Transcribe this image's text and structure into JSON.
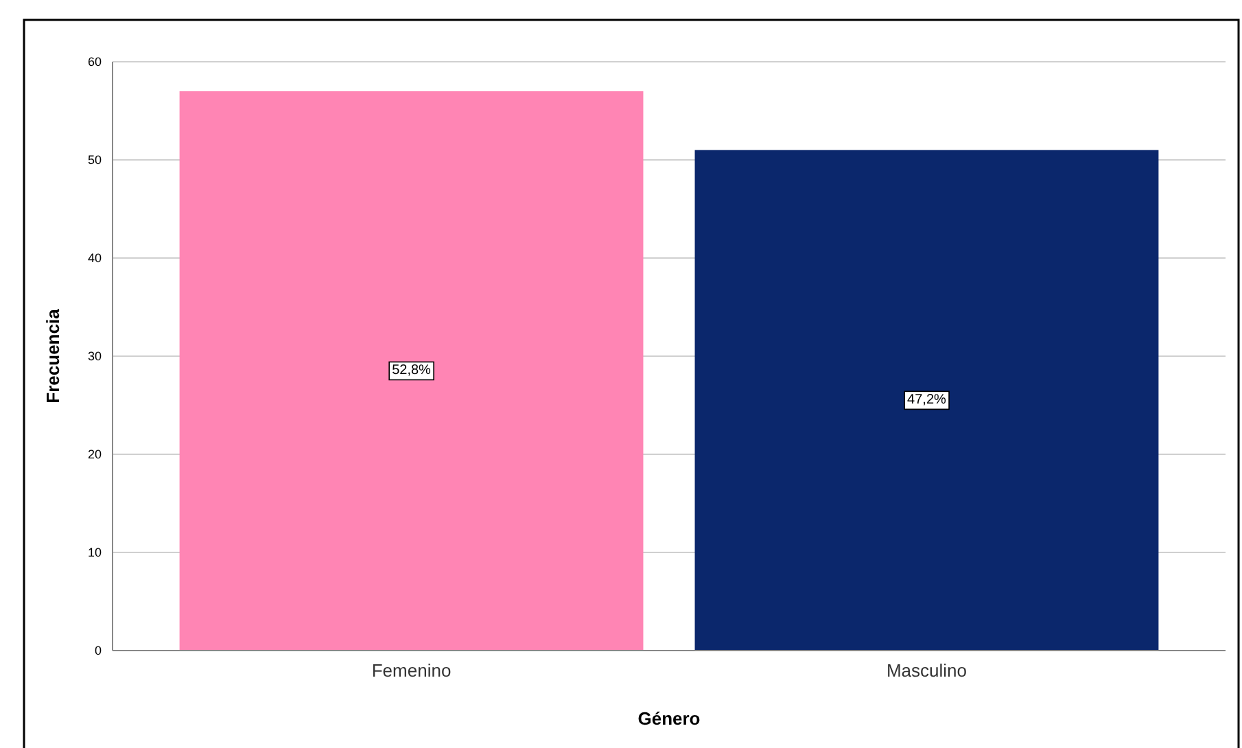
{
  "chart_data": {
    "type": "bar",
    "xlabel": "Género",
    "ylabel": "Frecuencia",
    "categories": [
      "Femenino",
      "Masculino"
    ],
    "values": [
      57,
      51
    ],
    "colors": [
      "#ff85b4",
      "#0b276c"
    ],
    "annotations": [
      {
        "text": "52,8%",
        "x": "Femenino",
        "y": 28.5
      },
      {
        "text": "47,2%",
        "x": "Masculino",
        "y": 25.5
      }
    ],
    "ylim": [
      0,
      60
    ],
    "yticks": [
      0,
      10,
      20,
      30,
      40,
      50,
      60
    ],
    "grid": "y"
  }
}
